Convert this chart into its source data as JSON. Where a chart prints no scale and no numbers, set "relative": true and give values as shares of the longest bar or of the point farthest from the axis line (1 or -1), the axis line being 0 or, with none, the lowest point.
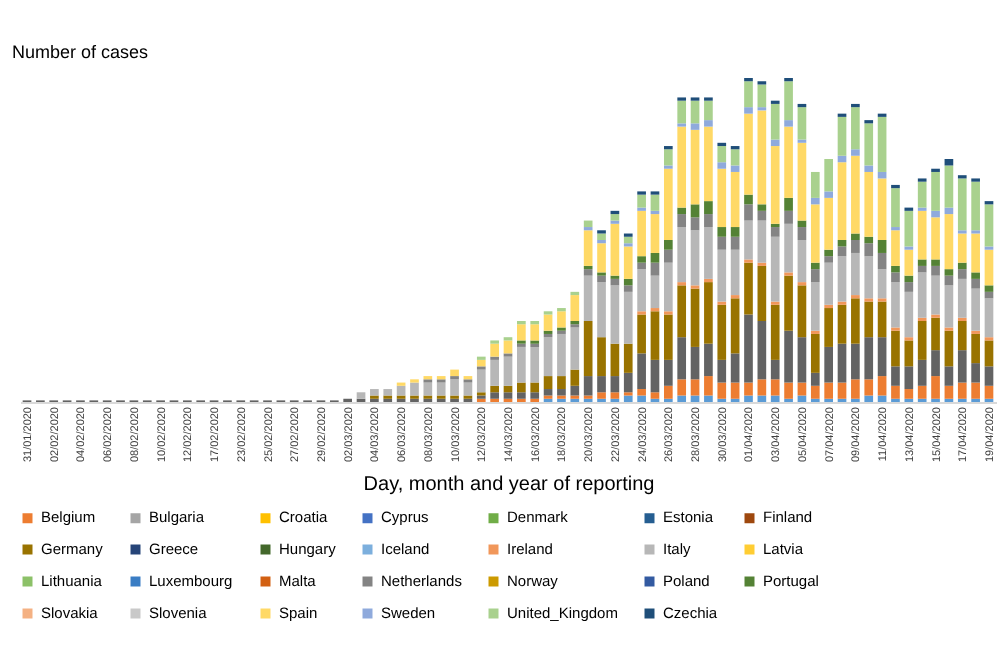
{
  "chart_data": {
    "type": "bar",
    "stacked": true,
    "relative": true,
    "ylabel": "Number of cases",
    "xlabel": "Day, month and year of reporting",
    "legend": "bottom",
    "grid": false,
    "categories": [
      "31/01/2020",
      null,
      "02/02/2020",
      null,
      "04/02/2020",
      null,
      "06/02/2020",
      null,
      "08/02/2020",
      null,
      "10/02/2020",
      null,
      "12/02/2020",
      null,
      "17/02/2020",
      null,
      "23/02/2020",
      null,
      "25/02/2020",
      null,
      "27/02/2020",
      null,
      "29/02/2020",
      null,
      "02/03/2020",
      null,
      "04/03/2020",
      null,
      "06/03/2020",
      null,
      "08/03/2020",
      null,
      "10/03/2020",
      null,
      "12/03/2020",
      null,
      "14/03/2020",
      null,
      "16/03/2020",
      null,
      "18/03/2020",
      null,
      "20/03/2020",
      null,
      "22/03/2020",
      null,
      "24/03/2020",
      null,
      "26/03/2020",
      null,
      "28/03/2020",
      null,
      "30/03/2020",
      null,
      "01/04/2020",
      null,
      "03/04/2020",
      null,
      "05/04/2020",
      null,
      "07/04/2020",
      null,
      "09/04/2020",
      null,
      "11/04/2020",
      null,
      "13/04/2020",
      null,
      "15/04/2020",
      null,
      "17/04/2020",
      null,
      "19/04/2020"
    ],
    "series": [
      {
        "color": "#5b9bd5",
        "values": [
          null,
          null,
          null,
          null,
          null,
          null,
          null,
          null,
          null,
          null,
          null,
          null,
          null,
          null,
          null,
          null,
          null,
          null,
          null,
          null,
          null,
          null,
          null,
          null,
          null,
          null,
          null,
          null,
          null,
          null,
          null,
          null,
          null,
          null,
          null,
          null,
          null,
          null,
          null,
          0.01,
          0.01,
          0.01,
          0.01,
          0.01,
          0.01,
          0.02,
          0.02,
          0.01,
          0.01,
          0.02,
          0.02,
          0.02,
          0.01,
          0.01,
          0.02,
          0.02,
          0.02,
          0.01,
          0.02,
          0.01,
          0.01,
          0.01,
          0.01,
          0.02,
          0.02,
          0.01,
          0.01,
          0.01,
          0.01,
          0.01,
          0.01,
          0.01,
          0.01
        ]
      },
      {
        "name": "Belgium",
        "color": "#ed7d31",
        "values": [
          null,
          null,
          null,
          null,
          null,
          null,
          null,
          null,
          null,
          null,
          null,
          null,
          null,
          null,
          null,
          null,
          null,
          null,
          null,
          null,
          null,
          null,
          null,
          null,
          null,
          null,
          null,
          null,
          null,
          null,
          null,
          null,
          null,
          null,
          0.01,
          0.01,
          0.01,
          0.01,
          0.01,
          0.01,
          0.01,
          0.01,
          0.01,
          0.02,
          0.02,
          0.01,
          0.02,
          0.02,
          0.04,
          0.05,
          0.05,
          0.06,
          0.05,
          0.05,
          0.04,
          0.05,
          0.05,
          0.05,
          0.04,
          0.04,
          0.05,
          0.05,
          0.06,
          0.05,
          0.06,
          0.04,
          0.03,
          0.04,
          0.07,
          0.04,
          0.05,
          0.05,
          0.04
        ]
      },
      {
        "name": "Bulgaria",
        "color": "#a5a5a5",
        "values": [
          null,
          null,
          null,
          null,
          null,
          null,
          null,
          null,
          null,
          null,
          null,
          null,
          null,
          null,
          null,
          null,
          null,
          null,
          null,
          null,
          null,
          null,
          null,
          null,
          null,
          null,
          null,
          null,
          null,
          null,
          null,
          null,
          null,
          null,
          null,
          null,
          null,
          null,
          null,
          null,
          null,
          null,
          null,
          null,
          null,
          null,
          null,
          null,
          null,
          null,
          null,
          null,
          null,
          null,
          null,
          null,
          null,
          null,
          null,
          null,
          null,
          null,
          null,
          null,
          null,
          null,
          null,
          null,
          null,
          null,
          null,
          null,
          null
        ]
      },
      {
        "name": "Croatia",
        "color": "#ffc000",
        "values": [
          null,
          null,
          null,
          null,
          null,
          null,
          null,
          null,
          null,
          null,
          null,
          null,
          null,
          null,
          null,
          null,
          null,
          null,
          null,
          null,
          null,
          null,
          null,
          null,
          null,
          null,
          null,
          null,
          null,
          null,
          null,
          null,
          null,
          null,
          null,
          null,
          null,
          null,
          null,
          null,
          null,
          null,
          null,
          null,
          null,
          null,
          null,
          null,
          null,
          null,
          null,
          null,
          null,
          null,
          null,
          null,
          null,
          null,
          null,
          null,
          null,
          null,
          null,
          null,
          null,
          null,
          null,
          null,
          null,
          null,
          null,
          null,
          null
        ]
      },
      {
        "name": "Cyprus",
        "color": "#4472c4",
        "values": [
          null,
          null,
          null,
          null,
          null,
          null,
          null,
          null,
          null,
          null,
          null,
          null,
          null,
          null,
          null,
          null,
          null,
          null,
          null,
          null,
          null,
          null,
          null,
          null,
          null,
          null,
          null,
          null,
          null,
          null,
          null,
          null,
          null,
          null,
          null,
          null,
          null,
          null,
          null,
          null,
          null,
          null,
          null,
          null,
          null,
          null,
          null,
          null,
          null,
          null,
          null,
          null,
          null,
          null,
          null,
          null,
          null,
          null,
          null,
          null,
          null,
          null,
          null,
          null,
          null,
          null,
          null,
          null,
          null,
          null,
          null,
          null,
          null
        ]
      },
      {
        "name": "Denmark",
        "color": "#70ad47",
        "values": [
          null,
          null,
          null,
          null,
          null,
          null,
          null,
          null,
          null,
          null,
          null,
          null,
          null,
          null,
          null,
          null,
          null,
          null,
          null,
          null,
          null,
          null,
          null,
          null,
          null,
          null,
          null,
          null,
          null,
          null,
          null,
          null,
          null,
          null,
          null,
          null,
          null,
          null,
          null,
          null,
          null,
          null,
          null,
          null,
          null,
          null,
          null,
          null,
          null,
          null,
          null,
          null,
          null,
          null,
          null,
          null,
          null,
          null,
          null,
          null,
          null,
          null,
          null,
          null,
          null,
          null,
          null,
          null,
          null,
          null,
          null,
          null,
          null
        ]
      },
      {
        "name": "Estonia",
        "color": "#255e91",
        "values": [
          null,
          null,
          null,
          null,
          null,
          null,
          null,
          null,
          null,
          null,
          null,
          null,
          null,
          null,
          null,
          null,
          null,
          null,
          null,
          null,
          null,
          null,
          null,
          null,
          null,
          null,
          null,
          null,
          null,
          null,
          null,
          null,
          null,
          null,
          null,
          null,
          null,
          null,
          null,
          null,
          null,
          null,
          null,
          null,
          null,
          null,
          null,
          null,
          null,
          null,
          null,
          null,
          null,
          null,
          null,
          null,
          null,
          null,
          null,
          null,
          null,
          null,
          null,
          null,
          null,
          null,
          null,
          null,
          null,
          null,
          null,
          null,
          null
        ]
      },
      {
        "name": "Finland",
        "color": "#9e480e",
        "values": [
          null,
          null,
          null,
          null,
          null,
          null,
          null,
          null,
          null,
          null,
          null,
          null,
          null,
          null,
          null,
          null,
          null,
          null,
          null,
          null,
          null,
          null,
          null,
          null,
          null,
          null,
          null,
          null,
          null,
          null,
          null,
          null,
          null,
          null,
          null,
          null,
          null,
          null,
          null,
          null,
          null,
          null,
          null,
          null,
          null,
          null,
          null,
          null,
          null,
          null,
          null,
          null,
          null,
          null,
          null,
          null,
          null,
          null,
          null,
          null,
          null,
          null,
          null,
          null,
          null,
          null,
          null,
          null,
          null,
          null,
          null,
          null,
          null
        ]
      },
      {
        "color": "#636363",
        "values": [
          0.005,
          0.005,
          0.005,
          0.005,
          0.005,
          0.005,
          0.005,
          0.005,
          0.005,
          0.005,
          0.005,
          0.005,
          0.005,
          0.005,
          0.005,
          0.005,
          0.005,
          0.005,
          0.005,
          0.005,
          0.005,
          0.005,
          0.005,
          0.005,
          0.01,
          0.01,
          0.01,
          0.01,
          0.01,
          0.01,
          0.01,
          0.01,
          0.01,
          0.01,
          0.01,
          0.02,
          0.02,
          0.02,
          0.02,
          0.02,
          0.02,
          0.03,
          0.06,
          0.05,
          0.05,
          0.06,
          0.11,
          0.1,
          0.08,
          0.13,
          0.1,
          0.1,
          0.07,
          0.09,
          0.21,
          0.18,
          0.06,
          0.16,
          0.14,
          0.04,
          0.11,
          0.12,
          0.11,
          0.13,
          0.12,
          0.06,
          0.07,
          0.08,
          0.08,
          0.06,
          0.1,
          0.06,
          0.06
        ]
      },
      {
        "name": "Germany",
        "color": "#997300",
        "values": [
          null,
          null,
          null,
          null,
          null,
          null,
          null,
          null,
          null,
          null,
          null,
          null,
          null,
          null,
          null,
          null,
          null,
          null,
          null,
          null,
          null,
          null,
          null,
          null,
          null,
          null,
          0.01,
          0.01,
          0.01,
          0.01,
          0.01,
          0.01,
          0.01,
          0.01,
          0.01,
          0.02,
          0.02,
          0.03,
          0.03,
          0.04,
          0.04,
          0.05,
          0.17,
          0.12,
          0.1,
          0.09,
          0.12,
          0.15,
          0.14,
          0.16,
          0.18,
          0.19,
          0.17,
          0.17,
          0.16,
          0.17,
          0.17,
          0.17,
          0.16,
          0.12,
          0.12,
          0.12,
          0.14,
          0.11,
          0.11,
          0.11,
          0.08,
          0.12,
          0.1,
          0.11,
          0.09,
          0.09,
          0.08
        ]
      },
      {
        "name": "Greece",
        "color": "#264478",
        "values": [
          null,
          null,
          null,
          null,
          null,
          null,
          null,
          null,
          null,
          null,
          null,
          null,
          null,
          null,
          null,
          null,
          null,
          null,
          null,
          null,
          null,
          null,
          null,
          null,
          null,
          null,
          null,
          null,
          null,
          null,
          null,
          null,
          null,
          null,
          null,
          null,
          null,
          null,
          null,
          null,
          null,
          null,
          null,
          null,
          null,
          null,
          null,
          null,
          null,
          null,
          null,
          null,
          null,
          null,
          null,
          null,
          null,
          null,
          null,
          null,
          null,
          null,
          null,
          null,
          null,
          null,
          null,
          null,
          null,
          null,
          null,
          null,
          null
        ]
      },
      {
        "name": "Hungary",
        "color": "#43682b",
        "values": [
          null,
          null,
          null,
          null,
          null,
          null,
          null,
          null,
          null,
          null,
          null,
          null,
          null,
          null,
          null,
          null,
          null,
          null,
          null,
          null,
          null,
          null,
          null,
          null,
          null,
          null,
          null,
          null,
          null,
          null,
          null,
          null,
          null,
          null,
          null,
          null,
          null,
          null,
          null,
          null,
          null,
          null,
          null,
          null,
          null,
          null,
          null,
          null,
          null,
          null,
          null,
          null,
          null,
          null,
          null,
          null,
          null,
          null,
          null,
          null,
          null,
          null,
          null,
          null,
          null,
          null,
          null,
          null,
          null,
          null,
          null,
          null,
          null
        ]
      },
      {
        "name": "Iceland",
        "color": "#7cafdd",
        "values": [
          null,
          null,
          null,
          null,
          null,
          null,
          null,
          null,
          null,
          null,
          null,
          null,
          null,
          null,
          null,
          null,
          null,
          null,
          null,
          null,
          null,
          null,
          null,
          null,
          null,
          null,
          null,
          null,
          null,
          null,
          null,
          null,
          null,
          null,
          null,
          null,
          null,
          null,
          null,
          null,
          null,
          null,
          null,
          null,
          null,
          null,
          null,
          null,
          null,
          null,
          null,
          null,
          null,
          null,
          null,
          null,
          null,
          null,
          null,
          null,
          null,
          null,
          null,
          null,
          null,
          null,
          null,
          null,
          null,
          null,
          null,
          null,
          null
        ]
      },
      {
        "name": "Ireland",
        "color": "#f1975a",
        "values": [
          null,
          null,
          null,
          null,
          null,
          null,
          null,
          null,
          null,
          null,
          null,
          null,
          null,
          null,
          null,
          null,
          null,
          null,
          null,
          null,
          null,
          null,
          null,
          null,
          null,
          null,
          null,
          null,
          null,
          null,
          null,
          null,
          null,
          null,
          null,
          null,
          null,
          null,
          null,
          null,
          null,
          null,
          null,
          null,
          null,
          null,
          0.01,
          0.01,
          0.01,
          0.01,
          0.01,
          0.01,
          0.01,
          0.01,
          0.01,
          0.01,
          0.01,
          0.01,
          0.01,
          0.01,
          0.01,
          0.01,
          0.01,
          0.01,
          0.01,
          0.01,
          0.01,
          0.01,
          0.01,
          0.01,
          0.01,
          0.01,
          0.01
        ]
      },
      {
        "name": "Italy",
        "color": "#b7b7b7",
        "values": [
          null,
          null,
          null,
          null,
          null,
          null,
          null,
          null,
          null,
          null,
          null,
          null,
          null,
          null,
          null,
          null,
          null,
          null,
          null,
          null,
          null,
          null,
          null,
          null,
          null,
          0.02,
          0.02,
          0.02,
          0.03,
          0.04,
          0.04,
          0.04,
          0.05,
          0.04,
          0.07,
          0.08,
          0.09,
          0.11,
          0.11,
          0.12,
          0.13,
          0.13,
          0.14,
          0.17,
          0.18,
          0.16,
          0.13,
          0.1,
          0.15,
          0.17,
          0.17,
          0.16,
          0.16,
          0.14,
          0.12,
          0.13,
          0.2,
          0.15,
          0.13,
          0.15,
          0.13,
          0.14,
          0.13,
          0.13,
          0.09,
          0.14,
          0.14,
          0.14,
          0.12,
          0.13,
          0.12,
          0.13,
          0.12
        ]
      },
      {
        "name": "Latvia",
        "color": "#ffcd33",
        "values": [
          null,
          null,
          null,
          null,
          null,
          null,
          null,
          null,
          null,
          null,
          null,
          null,
          null,
          null,
          null,
          null,
          null,
          null,
          null,
          null,
          null,
          null,
          null,
          null,
          null,
          null,
          null,
          null,
          null,
          null,
          null,
          null,
          null,
          null,
          null,
          null,
          null,
          null,
          null,
          null,
          null,
          null,
          null,
          null,
          null,
          null,
          null,
          null,
          null,
          null,
          null,
          null,
          null,
          null,
          null,
          null,
          null,
          null,
          null,
          null,
          null,
          null,
          null,
          null,
          null,
          null,
          null,
          null,
          null,
          null,
          null,
          null,
          null
        ]
      },
      {
        "name": "Lithuania",
        "color": "#8cc168",
        "values": [
          null,
          null,
          null,
          null,
          null,
          null,
          null,
          null,
          null,
          null,
          null,
          null,
          null,
          null,
          null,
          null,
          null,
          null,
          null,
          null,
          null,
          null,
          null,
          null,
          null,
          null,
          null,
          null,
          null,
          null,
          null,
          null,
          null,
          null,
          null,
          null,
          null,
          null,
          null,
          null,
          null,
          null,
          null,
          null,
          null,
          null,
          null,
          null,
          null,
          null,
          null,
          null,
          null,
          null,
          null,
          null,
          null,
          null,
          null,
          null,
          null,
          null,
          null,
          null,
          null,
          null,
          null,
          null,
          null,
          null,
          null,
          null,
          null
        ]
      },
      {
        "name": "Luxembourg",
        "color": "#3a7dc4",
        "values": [
          null,
          null,
          null,
          null,
          null,
          null,
          null,
          null,
          null,
          null,
          null,
          null,
          null,
          null,
          null,
          null,
          null,
          null,
          null,
          null,
          null,
          null,
          null,
          null,
          null,
          null,
          null,
          null,
          null,
          null,
          null,
          null,
          null,
          null,
          null,
          null,
          null,
          null,
          null,
          null,
          null,
          null,
          null,
          null,
          null,
          null,
          null,
          null,
          null,
          null,
          null,
          null,
          null,
          null,
          null,
          null,
          null,
          null,
          null,
          null,
          null,
          null,
          null,
          null,
          null,
          null,
          null,
          null,
          null,
          null,
          null,
          null,
          null
        ]
      },
      {
        "name": "Malta",
        "color": "#d26012",
        "values": [
          null,
          null,
          null,
          null,
          null,
          null,
          null,
          null,
          null,
          null,
          null,
          null,
          null,
          null,
          null,
          null,
          null,
          null,
          null,
          null,
          null,
          null,
          null,
          null,
          null,
          null,
          null,
          null,
          null,
          null,
          null,
          null,
          null,
          null,
          null,
          null,
          null,
          null,
          null,
          null,
          null,
          null,
          null,
          null,
          null,
          null,
          null,
          null,
          null,
          null,
          null,
          null,
          null,
          null,
          null,
          null,
          null,
          null,
          null,
          null,
          null,
          null,
          null,
          null,
          null,
          null,
          null,
          null,
          null,
          null,
          null,
          null,
          null
        ]
      },
      {
        "name": "Netherlands",
        "color": "#848484",
        "values": [
          null,
          null,
          null,
          null,
          null,
          null,
          null,
          null,
          null,
          null,
          null,
          null,
          null,
          null,
          null,
          null,
          null,
          null,
          null,
          null,
          null,
          null,
          null,
          null,
          null,
          null,
          null,
          null,
          null,
          null,
          0.01,
          0.01,
          0.01,
          0.01,
          0.01,
          0.01,
          0.01,
          0.01,
          0.01,
          0.01,
          0.01,
          0.01,
          0.02,
          0.02,
          0.02,
          0.02,
          0.02,
          0.04,
          0.04,
          0.04,
          0.04,
          0.04,
          0.04,
          0.04,
          0.05,
          0.03,
          0.03,
          0.04,
          0.04,
          0.04,
          0.02,
          0.03,
          0.04,
          0.04,
          0.05,
          0.03,
          0.03,
          0.02,
          0.03,
          0.03,
          0.03,
          0.03,
          0.02
        ]
      },
      {
        "name": "Norway",
        "color": "#cc9a00",
        "values": [
          null,
          null,
          null,
          null,
          null,
          null,
          null,
          null,
          null,
          null,
          null,
          null,
          null,
          null,
          null,
          null,
          null,
          null,
          null,
          null,
          null,
          null,
          null,
          null,
          null,
          null,
          null,
          null,
          null,
          null,
          null,
          null,
          null,
          null,
          null,
          null,
          null,
          null,
          null,
          null,
          null,
          null,
          null,
          null,
          null,
          null,
          null,
          null,
          null,
          null,
          null,
          null,
          null,
          null,
          null,
          null,
          null,
          null,
          null,
          null,
          null,
          null,
          null,
          null,
          null,
          null,
          null,
          null,
          null,
          null,
          null,
          null,
          null
        ]
      },
      {
        "name": "Poland",
        "color": "#335aa1",
        "values": [
          null,
          null,
          null,
          null,
          null,
          null,
          null,
          null,
          null,
          null,
          null,
          null,
          null,
          null,
          null,
          null,
          null,
          null,
          null,
          null,
          null,
          null,
          null,
          null,
          null,
          null,
          null,
          null,
          null,
          null,
          null,
          null,
          null,
          null,
          null,
          null,
          null,
          null,
          null,
          null,
          null,
          null,
          null,
          null,
          null,
          null,
          null,
          null,
          null,
          null,
          null,
          null,
          null,
          null,
          null,
          null,
          null,
          null,
          null,
          null,
          null,
          null,
          null,
          null,
          null,
          null,
          null,
          null,
          null,
          null,
          null,
          null,
          null
        ]
      },
      {
        "name": "Portugal",
        "color": "#548235",
        "values": [
          null,
          null,
          null,
          null,
          null,
          null,
          null,
          null,
          null,
          null,
          null,
          null,
          null,
          null,
          null,
          null,
          null,
          null,
          null,
          null,
          null,
          null,
          null,
          null,
          null,
          null,
          null,
          null,
          null,
          null,
          null,
          null,
          null,
          null,
          null,
          null,
          null,
          0.01,
          0.01,
          0.01,
          0.01,
          0.01,
          0.01,
          0.01,
          0.01,
          0.02,
          0.02,
          0.03,
          0.03,
          0.02,
          0.04,
          0.04,
          0.03,
          0.03,
          0.03,
          0.02,
          0.01,
          0.04,
          0.02,
          0.02,
          0.02,
          0.02,
          0.02,
          0.02,
          0.04,
          0.02,
          0.02,
          0.02,
          0.02,
          0.02,
          0.02,
          0.02,
          0.02
        ]
      },
      {
        "name": "Slovakia",
        "color": "#f4b183",
        "values": [
          null,
          null,
          null,
          null,
          null,
          null,
          null,
          null,
          null,
          null,
          null,
          null,
          null,
          null,
          null,
          null,
          null,
          null,
          null,
          null,
          null,
          null,
          null,
          null,
          null,
          null,
          null,
          null,
          null,
          null,
          null,
          null,
          null,
          null,
          null,
          null,
          null,
          null,
          null,
          null,
          null,
          null,
          null,
          null,
          null,
          null,
          null,
          null,
          null,
          null,
          null,
          null,
          null,
          null,
          null,
          null,
          null,
          null,
          null,
          null,
          null,
          null,
          null,
          null,
          null,
          null,
          null,
          null,
          null,
          null,
          null,
          null,
          null
        ]
      },
      {
        "name": "Slovenia",
        "color": "#c9c9c9",
        "values": [
          null,
          null,
          null,
          null,
          null,
          null,
          null,
          null,
          null,
          null,
          null,
          null,
          null,
          null,
          null,
          null,
          null,
          null,
          null,
          null,
          null,
          null,
          null,
          null,
          null,
          null,
          null,
          null,
          null,
          null,
          null,
          null,
          null,
          null,
          null,
          null,
          null,
          null,
          null,
          null,
          null,
          null,
          null,
          null,
          null,
          null,
          null,
          null,
          null,
          null,
          null,
          null,
          null,
          null,
          null,
          null,
          null,
          null,
          null,
          null,
          null,
          null,
          null,
          null,
          null,
          null,
          null,
          null,
          null,
          null,
          null,
          null,
          null
        ]
      },
      {
        "name": "Spain",
        "color": "#ffd966",
        "values": [
          null,
          null,
          null,
          null,
          null,
          null,
          null,
          null,
          null,
          null,
          null,
          null,
          null,
          null,
          null,
          null,
          null,
          null,
          null,
          null,
          null,
          null,
          null,
          null,
          null,
          null,
          null,
          null,
          0.01,
          0.01,
          0.01,
          0.01,
          0.02,
          0.01,
          0.02,
          0.04,
          0.04,
          0.05,
          0.05,
          0.05,
          0.05,
          0.08,
          0.11,
          0.09,
          0.16,
          0.1,
          0.14,
          0.12,
          0.22,
          0.25,
          0.23,
          0.23,
          0.18,
          0.17,
          0.25,
          0.29,
          0.24,
          0.22,
          0.24,
          0.18,
          0.16,
          0.24,
          0.24,
          0.2,
          0.19,
          0.11,
          0.08,
          0.15,
          0.13,
          0.17,
          0.09,
          0.12,
          0.11
        ]
      },
      {
        "name": "Sweden",
        "color": "#8faadc",
        "values": [
          null,
          null,
          null,
          null,
          null,
          null,
          null,
          null,
          null,
          null,
          null,
          null,
          null,
          null,
          null,
          null,
          null,
          null,
          null,
          null,
          null,
          null,
          null,
          null,
          null,
          null,
          null,
          null,
          null,
          null,
          null,
          null,
          null,
          null,
          null,
          null,
          null,
          null,
          null,
          null,
          null,
          null,
          0.01,
          0.01,
          0.01,
          0.01,
          0.01,
          0.01,
          0.01,
          0.01,
          0.02,
          0.02,
          0.02,
          0.02,
          0.02,
          0.01,
          0.02,
          0.02,
          0.01,
          0.02,
          0.02,
          0.02,
          0.02,
          0.02,
          0.02,
          0.01,
          0.01,
          0.01,
          0.02,
          0.02,
          0.01,
          0.01,
          0.01
        ]
      },
      {
        "name": "United_Kingdom",
        "color": "#a9d18e",
        "values": [
          null,
          null,
          null,
          null,
          null,
          null,
          null,
          null,
          null,
          null,
          null,
          null,
          null,
          null,
          null,
          null,
          null,
          null,
          null,
          null,
          null,
          null,
          null,
          null,
          null,
          null,
          null,
          null,
          null,
          null,
          null,
          null,
          null,
          null,
          0.01,
          0.01,
          0.01,
          0.01,
          0.01,
          0.01,
          0.01,
          0.01,
          0.02,
          0.02,
          0.02,
          0.02,
          0.04,
          0.05,
          0.05,
          0.07,
          0.07,
          0.06,
          0.05,
          0.05,
          0.08,
          0.07,
          0.11,
          0.12,
          0.1,
          0.08,
          0.1,
          0.12,
          0.13,
          0.13,
          0.17,
          0.12,
          0.11,
          0.08,
          0.12,
          0.13,
          0.16,
          0.15,
          0.13
        ]
      },
      {
        "name": "Czechia",
        "color": "#1f4e79",
        "values": [
          null,
          null,
          null,
          null,
          null,
          null,
          null,
          null,
          null,
          null,
          null,
          null,
          null,
          null,
          null,
          null,
          null,
          null,
          null,
          null,
          null,
          null,
          null,
          null,
          null,
          null,
          null,
          null,
          null,
          null,
          null,
          null,
          null,
          null,
          null,
          null,
          null,
          null,
          null,
          null,
          null,
          null,
          null,
          0.01,
          0.01,
          0.01,
          0.01,
          0.01,
          0.01,
          0.01,
          0.01,
          0.01,
          0.01,
          0.01,
          0.01,
          0.01,
          0.01,
          0.01,
          0.01,
          null,
          null,
          0.01,
          0.01,
          0.01,
          0.01,
          0.01,
          0.01,
          0.01,
          0.01,
          0.02,
          0.01,
          0.01,
          0.01
        ]
      }
    ]
  }
}
